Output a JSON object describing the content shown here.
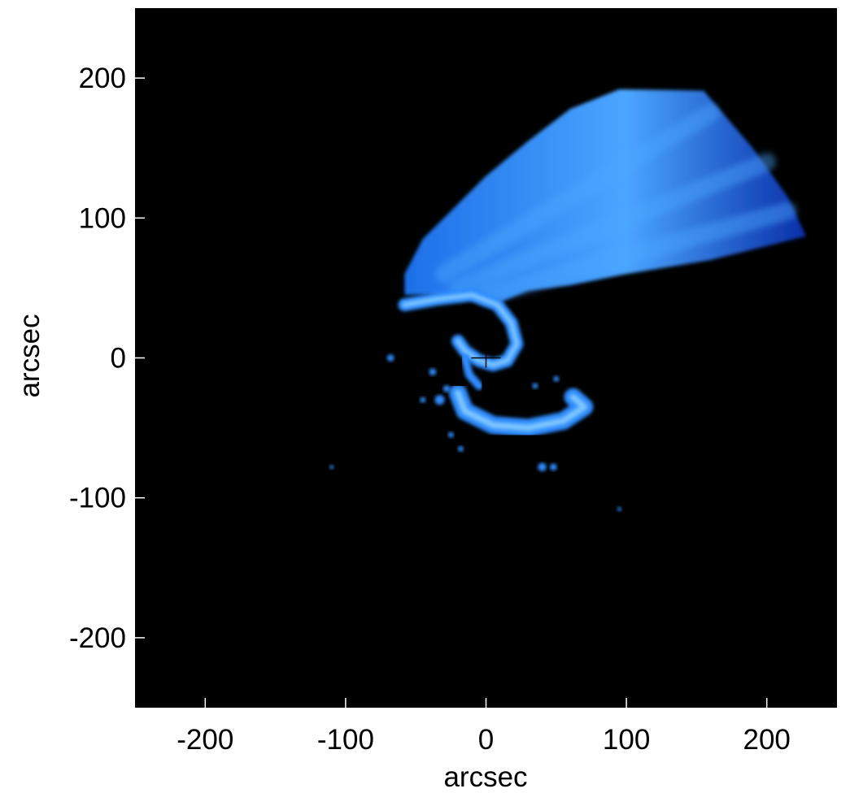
{
  "chart_data": {
    "type": "heatmap",
    "title": "",
    "xlabel": "arcsec",
    "ylabel": "arcsec",
    "xlim": [
      -250,
      250
    ],
    "ylim": [
      -250,
      250
    ],
    "x_ticks": [
      -200,
      -100,
      0,
      100,
      200
    ],
    "y_ticks": [
      200,
      100,
      0,
      -100,
      -200
    ],
    "x_tick_labels": [
      "-200",
      "-100",
      "0",
      "100",
      "200"
    ],
    "y_tick_labels": [
      "200",
      "100",
      "0",
      "-100",
      "-200"
    ],
    "grid": false,
    "colormap": "blue",
    "colors": {
      "background": "#000000",
      "fan_dark": "#0a2fa8",
      "fan_mid": "#1d6fe8",
      "fan_bright": "#4aa6ff",
      "spiral": "#2f8cff",
      "spiral_bright": "#7cc4ff"
    },
    "center_marker": [
      0,
      0
    ],
    "features": {
      "fan_outline": [
        [
          -58,
          60
        ],
        [
          -45,
          85
        ],
        [
          -25,
          105
        ],
        [
          0,
          130
        ],
        [
          30,
          155
        ],
        [
          60,
          178
        ],
        [
          95,
          192
        ],
        [
          155,
          191
        ],
        [
          190,
          150
        ],
        [
          215,
          115
        ],
        [
          228,
          87
        ],
        [
          160,
          70
        ],
        [
          100,
          60
        ],
        [
          60,
          52
        ],
        [
          30,
          48
        ],
        [
          10,
          40
        ],
        [
          -10,
          42
        ],
        [
          -40,
          45
        ],
        [
          -58,
          45
        ]
      ],
      "fan_streaks": [
        {
          "from": [
            -30,
            60
          ],
          "to": [
            160,
            175
          ]
        },
        {
          "from": [
            -20,
            50
          ],
          "to": [
            200,
            140
          ]
        },
        {
          "from": [
            0,
            45
          ],
          "to": [
            215,
            105
          ]
        }
      ],
      "spiral_arm": [
        [
          -58,
          38
        ],
        [
          -35,
          42
        ],
        [
          -10,
          45
        ],
        [
          8,
          38
        ],
        [
          18,
          25
        ],
        [
          22,
          10
        ],
        [
          15,
          -2
        ],
        [
          5,
          -5
        ],
        [
          -5,
          -2
        ],
        [
          -15,
          5
        ],
        [
          -20,
          12
        ]
      ],
      "inner_arc": [
        [
          -15,
          0
        ],
        [
          -12,
          -12
        ],
        [
          -5,
          -20
        ]
      ],
      "lower_arc": [
        [
          -20,
          -25
        ],
        [
          -15,
          -38
        ],
        [
          5,
          -48
        ],
        [
          30,
          -50
        ],
        [
          55,
          -45
        ],
        [
          70,
          -35
        ],
        [
          62,
          -28
        ]
      ],
      "blobs": [
        {
          "x": -68,
          "y": 0,
          "r": 2.5
        },
        {
          "x": -38,
          "y": -10,
          "r": 2.5
        },
        {
          "x": -28,
          "y": -22,
          "r": 2.5
        },
        {
          "x": -33,
          "y": -30,
          "r": 3.5
        },
        {
          "x": -25,
          "y": -55,
          "r": 2
        },
        {
          "x": -18,
          "y": -65,
          "r": 2
        },
        {
          "x": -45,
          "y": -30,
          "r": 2
        },
        {
          "x": 40,
          "y": -78,
          "r": 3
        },
        {
          "x": 48,
          "y": -78,
          "r": 2.5
        },
        {
          "x": 35,
          "y": -20,
          "r": 2
        },
        {
          "x": 50,
          "y": -15,
          "r": 2
        },
        {
          "x": -110,
          "y": -78,
          "r": 1.5
        },
        {
          "x": 95,
          "y": -108,
          "r": 1.5
        }
      ]
    }
  }
}
